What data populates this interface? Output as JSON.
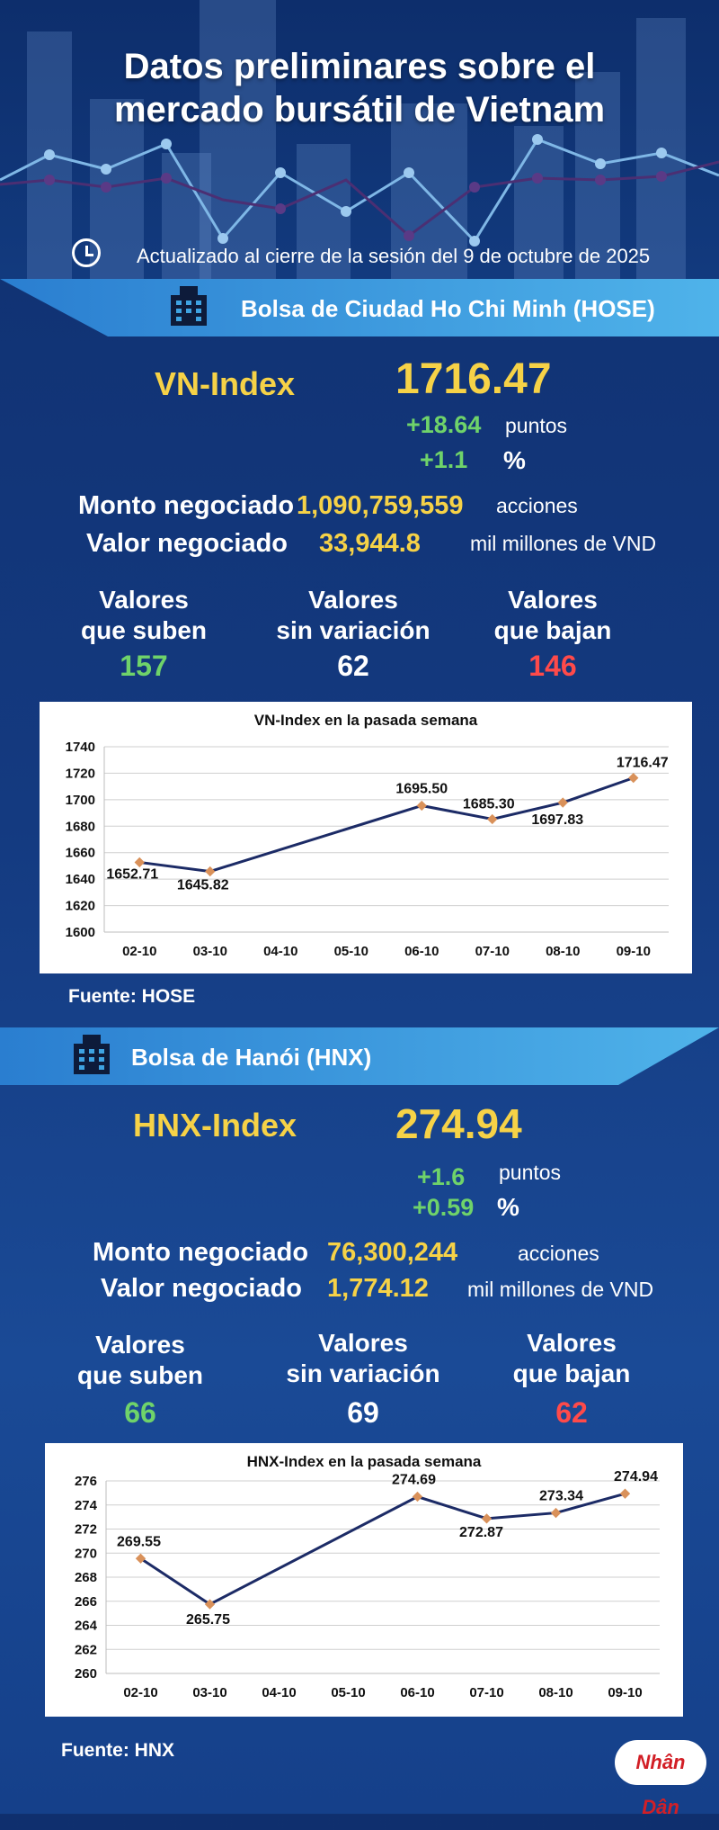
{
  "header": {
    "title_line1": "Datos preliminares sobre el",
    "title_line2": "mercado bursátil de Vietnam",
    "updated": "Actualizado al cierre de la sesión del 9 de octubre de 2025"
  },
  "hose": {
    "banner": "Bolsa de Ciudad Ho Chi Minh (HOSE)",
    "index_name": "VN-Index",
    "index_value": "1716.47",
    "change_points": "+18.64",
    "points_label": "puntos",
    "change_pct": "+1.1",
    "pct_label": "%",
    "volume_label": "Monto negociado",
    "volume_value": "1,090,759,559",
    "volume_unit": "acciones",
    "value_label": "Valor negociado",
    "value_value": "33,944.8",
    "value_unit": "mil millones de VND",
    "up_label_1": "Valores",
    "up_label_2": "que suben",
    "up_count": "157",
    "flat_label_1": "Valores",
    "flat_label_2": "sin variación",
    "flat_count": "62",
    "down_label_1": "Valores",
    "down_label_2": "que bajan",
    "down_count": "146",
    "source": "Fuente: HOSE"
  },
  "hnx": {
    "banner": "Bolsa de Hanói (HNX)",
    "index_name": "HNX-Index",
    "index_value": "274.94",
    "change_points": "+1.6",
    "points_label": "puntos",
    "change_pct": "+0.59",
    "pct_label": "%",
    "volume_label": "Monto negociado",
    "volume_value": "76,300,244",
    "volume_unit": "acciones",
    "value_label": "Valor negociado",
    "value_value": "1,774.12",
    "value_unit": "mil millones de VND",
    "up_label_1": "Valores",
    "up_label_2": "que suben",
    "up_count": "66",
    "flat_label_1": "Valores",
    "flat_label_2": "sin variación",
    "flat_count": "69",
    "down_label_1": "Valores",
    "down_label_2": "que bajan",
    "down_count": "62",
    "source": "Fuente:  HNX"
  },
  "logo": "Nhân Dân",
  "colors": {
    "up": "#6fd36a",
    "down": "#ff4a4a",
    "highlight": "#f6d247",
    "line": "#1c2b66",
    "marker": "#d9915a"
  },
  "chart_data": [
    {
      "type": "line",
      "title": "VN-Index en la pasada semana",
      "categories": [
        "02-10",
        "03-10",
        "04-10",
        "05-10",
        "06-10",
        "07-10",
        "08-10",
        "09-10"
      ],
      "points": [
        {
          "x": "02-10",
          "y": 1652.71,
          "label": "1652.71"
        },
        {
          "x": "03-10",
          "y": 1645.82,
          "label": "1645.82"
        },
        {
          "x": "06-10",
          "y": 1695.5,
          "label": "1695.50"
        },
        {
          "x": "07-10",
          "y": 1685.3,
          "label": "1685.30"
        },
        {
          "x": "08-10",
          "y": 1697.83,
          "label": "1697.83"
        },
        {
          "x": "09-10",
          "y": 1716.47,
          "label": "1716.47"
        }
      ],
      "yticks": [
        1600,
        1620,
        1640,
        1660,
        1680,
        1700,
        1720,
        1740
      ],
      "ylim": [
        1600,
        1740
      ],
      "grid": true
    },
    {
      "type": "line",
      "title": "HNX-Index en la pasada semana",
      "categories": [
        "02-10",
        "03-10",
        "04-10",
        "05-10",
        "06-10",
        "07-10",
        "08-10",
        "09-10"
      ],
      "points": [
        {
          "x": "02-10",
          "y": 269.55,
          "label": "269.55"
        },
        {
          "x": "03-10",
          "y": 265.75,
          "label": "265.75"
        },
        {
          "x": "06-10",
          "y": 274.69,
          "label": "274.69"
        },
        {
          "x": "07-10",
          "y": 272.87,
          "label": "272.87"
        },
        {
          "x": "08-10",
          "y": 273.34,
          "label": "273.34"
        },
        {
          "x": "09-10",
          "y": 274.94,
          "label": "274.94"
        }
      ],
      "yticks": [
        260,
        262,
        264,
        266,
        268,
        270,
        272,
        274,
        276
      ],
      "ylim": [
        260,
        276
      ],
      "grid": true
    }
  ]
}
